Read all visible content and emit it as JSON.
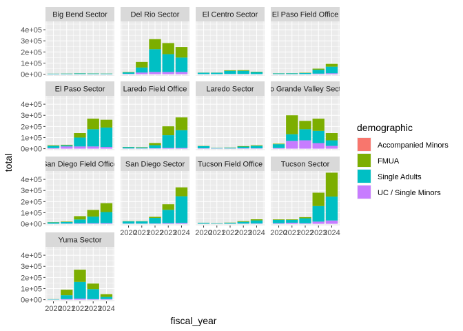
{
  "chart_data": {
    "type": "bar",
    "stacked": true,
    "faceted": true,
    "xlabel": "fiscal_year",
    "ylabel": "total",
    "ylim": [
      -15000,
      475000
    ],
    "y_ticks": [
      0,
      100000,
      200000,
      300000,
      400000
    ],
    "y_tick_labels": [
      "0e+00",
      "1e+05",
      "2e+05",
      "3e+05",
      "4e+05"
    ],
    "x_ticks": [
      2020,
      2021,
      2022,
      2023,
      2024
    ],
    "x_tick_labels": [
      "2020",
      "2021",
      "2022",
      "2023",
      "2024"
    ],
    "legend": {
      "title": "demographic",
      "position": "right",
      "entries": [
        "Accompanied Minors",
        "FMUA",
        "Single Adults",
        "UC / Single Minors"
      ],
      "colors": [
        "#F8766D",
        "#7CAE00",
        "#00BFC4",
        "#C77CFF"
      ]
    },
    "facets": [
      {
        "name": "Big Bend Sector",
        "years": [
          2020,
          2021,
          2022,
          2023,
          2024
        ],
        "series": {
          "Accompanied Minors": [
            0,
            0,
            0,
            0,
            0
          ],
          "FMUA": [
            500,
            800,
            1200,
            1000,
            800
          ],
          "Single Adults": [
            4000,
            5000,
            6000,
            5500,
            5000
          ],
          "UC / Single Minors": [
            500,
            600,
            800,
            700,
            600
          ]
        }
      },
      {
        "name": "Del Rio Sector",
        "years": [
          2020,
          2021,
          2022,
          2023,
          2024
        ],
        "series": {
          "Accompanied Minors": [
            0,
            0,
            0,
            0,
            0
          ],
          "FMUA": [
            3000,
            50000,
            90000,
            100000,
            95000
          ],
          "Single Adults": [
            14000,
            45000,
            205000,
            160000,
            130000
          ],
          "UC / Single Minors": [
            3000,
            15000,
            20000,
            20000,
            20000
          ]
        }
      },
      {
        "name": "El Centro Sector",
        "years": [
          2020,
          2021,
          2022,
          2023,
          2024
        ],
        "series": {
          "Accompanied Minors": [
            0,
            0,
            0,
            0,
            0
          ],
          "FMUA": [
            1000,
            1000,
            5000,
            6000,
            3000
          ],
          "Single Adults": [
            12000,
            12000,
            28000,
            28000,
            18000
          ],
          "UC / Single Minors": [
            1000,
            1000,
            2000,
            2000,
            1000
          ]
        }
      },
      {
        "name": "El Paso Field Office",
        "years": [
          2020,
          2021,
          2022,
          2023,
          2024
        ],
        "series": {
          "Accompanied Minors": [
            0,
            0,
            0,
            0,
            0
          ],
          "FMUA": [
            1000,
            1000,
            3000,
            10000,
            25000
          ],
          "Single Adults": [
            6000,
            7000,
            9000,
            35000,
            60000
          ],
          "UC / Single Minors": [
            1000,
            1000,
            1000,
            5000,
            8000
          ]
        }
      },
      {
        "name": "El Paso Sector",
        "years": [
          2020,
          2021,
          2022,
          2023,
          2024
        ],
        "series": {
          "Accompanied Minors": [
            0,
            0,
            0,
            0,
            0
          ],
          "FMUA": [
            5000,
            5000,
            40000,
            95000,
            70000
          ],
          "Single Adults": [
            20000,
            10000,
            80000,
            155000,
            175000
          ],
          "UC / Single Minors": [
            5000,
            20000,
            20000,
            20000,
            15000
          ]
        }
      },
      {
        "name": "Laredo Field Office",
        "years": [
          2020,
          2021,
          2022,
          2023,
          2024
        ],
        "series": {
          "Accompanied Minors": [
            0,
            0,
            0,
            0,
            0
          ],
          "FMUA": [
            2000,
            3000,
            20000,
            80000,
            115000
          ],
          "Single Adults": [
            12000,
            9000,
            28000,
            115000,
            160000
          ],
          "UC / Single Minors": [
            2000,
            2000,
            3000,
            6000,
            6000
          ]
        }
      },
      {
        "name": "Laredo Sector",
        "years": [
          2020,
          2021,
          2022,
          2023,
          2024
        ],
        "series": {
          "Accompanied Minors": [
            0,
            0,
            0,
            0,
            0
          ],
          "FMUA": [
            2000,
            1000,
            2000,
            4000,
            5000
          ],
          "Single Adults": [
            20000,
            4000,
            6000,
            16000,
            22000
          ],
          "UC / Single Minors": [
            3000,
            2000,
            2000,
            3000,
            3000
          ]
        }
      },
      {
        "name": "Rio Grande Valley Sector",
        "years": [
          2020,
          2021,
          2022,
          2023,
          2024
        ],
        "series": {
          "Accompanied Minors": [
            0,
            0,
            0,
            0,
            0
          ],
          "FMUA": [
            5000,
            170000,
            75000,
            110000,
            65000
          ],
          "Single Adults": [
            35000,
            60000,
            100000,
            110000,
            50000
          ],
          "UC / Single Minors": [
            5000,
            70000,
            75000,
            50000,
            25000
          ]
        }
      },
      {
        "name": "San Diego Field Office",
        "years": [
          2020,
          2021,
          2022,
          2023,
          2024
        ],
        "series": {
          "Accompanied Minors": [
            0,
            0,
            0,
            0,
            0
          ],
          "FMUA": [
            2000,
            4000,
            30000,
            60000,
            80000
          ],
          "Single Adults": [
            12000,
            14000,
            35000,
            60000,
            100000
          ],
          "UC / Single Minors": [
            1000,
            2000,
            4000,
            5000,
            6000
          ]
        }
      },
      {
        "name": "San Diego Sector",
        "years": [
          2020,
          2021,
          2022,
          2023,
          2024
        ],
        "series": {
          "Accompanied Minors": [
            0,
            0,
            0,
            0,
            0
          ],
          "FMUA": [
            2000,
            2000,
            10000,
            50000,
            80000
          ],
          "Single Adults": [
            20000,
            20000,
            50000,
            120000,
            240000
          ],
          "UC / Single Minors": [
            2000,
            2000,
            3000,
            6000,
            8000
          ]
        }
      },
      {
        "name": "Tucson Field Office",
        "years": [
          2020,
          2021,
          2022,
          2023,
          2024
        ],
        "series": {
          "Accompanied Minors": [
            0,
            0,
            0,
            0,
            0
          ],
          "FMUA": [
            1000,
            1000,
            2000,
            6000,
            10000
          ],
          "Single Adults": [
            8000,
            4000,
            8000,
            16000,
            28000
          ],
          "UC / Single Minors": [
            1000,
            500,
            1000,
            2000,
            3000
          ]
        }
      },
      {
        "name": "Tucson Sector",
        "years": [
          2020,
          2021,
          2022,
          2023,
          2024
        ],
        "series": {
          "Accompanied Minors": [
            0,
            0,
            0,
            0,
            0
          ],
          "FMUA": [
            5000,
            5000,
            10000,
            120000,
            215000
          ],
          "Single Adults": [
            30000,
            25000,
            45000,
            140000,
            215000
          ],
          "UC / Single Minors": [
            5000,
            10000,
            5000,
            20000,
            30000
          ]
        }
      },
      {
        "name": "Yuma Sector",
        "years": [
          2020,
          2021,
          2022,
          2023,
          2024
        ],
        "series": {
          "Accompanied Minors": [
            0,
            0,
            0,
            0,
            0
          ],
          "FMUA": [
            1000,
            50000,
            110000,
            50000,
            25000
          ],
          "Single Adults": [
            3000,
            35000,
            150000,
            90000,
            20000
          ],
          "UC / Single Minors": [
            1000,
            5000,
            10000,
            5000,
            5000
          ]
        }
      }
    ]
  }
}
